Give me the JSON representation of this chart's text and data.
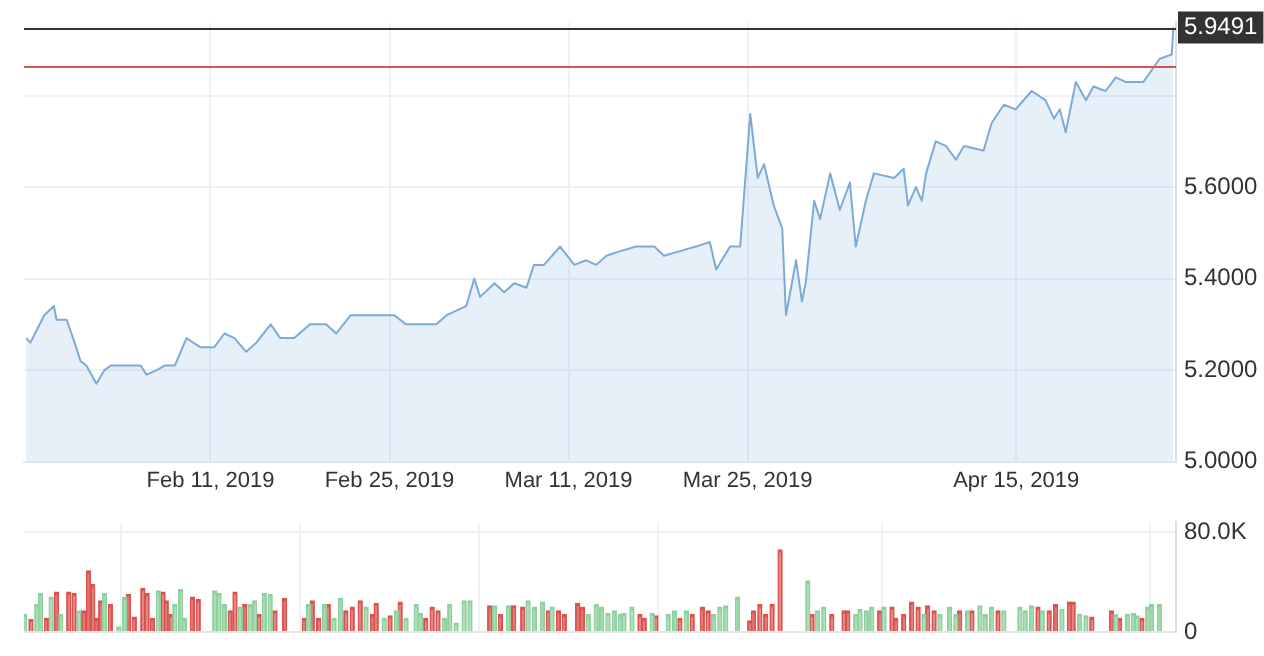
{
  "chart_data": [
    {
      "type": "area",
      "xlim": [
        "2019-01-27T10:00",
        "2019-04-27T12:00"
      ],
      "xticks": [
        {
          "value": "2019-02-11",
          "label": "Feb 11, 2019"
        },
        {
          "value": "2019-02-25",
          "label": "Feb 25, 2019"
        },
        {
          "value": "2019-03-11",
          "label": "Mar 11, 2019"
        },
        {
          "value": "2019-03-25",
          "label": "Mar 25, 2019"
        },
        {
          "value": "2019-04-15",
          "label": "Apr 15, 2019"
        }
      ],
      "ylim": [
        5.0,
        5.96
      ],
      "yticks": [
        {
          "value": 5.0,
          "label": "5.0000"
        },
        {
          "value": 5.2,
          "label": "5.2000"
        },
        {
          "value": 5.4,
          "label": "5.4000"
        },
        {
          "value": 5.6,
          "label": "5.6000"
        },
        {
          "value": 5.8,
          "label": null
        }
      ],
      "grid": true,
      "legend": false,
      "marker": "none",
      "line_style": "solid",
      "ref_lines": [
        {
          "axis": "y",
          "value": 5.9491,
          "label": "5.9491",
          "color": "#333333"
        },
        {
          "axis": "y",
          "value": 5.865,
          "label": null,
          "color": "#d9534f"
        }
      ],
      "series": [
        {
          "color": "#7eaad8",
          "x": [
            "2019-01-27T14:00",
            "2019-01-27T22:00",
            "2019-01-29T00:00",
            "2019-01-29T18:00",
            "2019-01-29T23:00",
            "2019-01-30T18:00",
            "2019-01-31T09:00",
            "2019-01-31T20:00",
            "2019-02-01T07:00",
            "2019-02-02T02:00",
            "2019-02-02T17:00",
            "2019-02-03T05:00",
            "2019-02-04T07:00",
            "2019-02-05T13:00",
            "2019-02-06T00:00",
            "2019-02-06T19:00",
            "2019-02-07T10:00",
            "2019-02-08T05:00",
            "2019-02-09T03:00",
            "2019-02-10T05:00",
            "2019-02-11T07:00",
            "2019-02-12T02:00",
            "2019-02-12T21:00",
            "2019-02-13T19:00",
            "2019-02-14T14:00",
            "2019-02-15T17:00",
            "2019-02-16T11:00",
            "2019-02-17T13:00",
            "2019-02-18T19:00",
            "2019-02-20T01:00",
            "2019-02-20T20:00",
            "2019-02-21T23:00",
            "2019-02-23T19:00",
            "2019-02-25T09:00",
            "2019-02-26T07:00",
            "2019-02-27T21:00",
            "2019-02-28T16:00",
            "2019-03-01T11:00",
            "2019-03-03T00:00",
            "2019-03-03T15:00",
            "2019-03-04T02:00",
            "2019-03-05T05:00",
            "2019-03-05T23:00",
            "2019-03-06T18:00",
            "2019-03-07T17:00",
            "2019-03-08T07:00",
            "2019-03-09T02:00",
            "2019-03-10T08:00",
            "2019-03-11T11:00",
            "2019-03-12T09:00",
            "2019-03-13T04:00",
            "2019-03-13T23:00",
            "2019-03-15T01:00",
            "2019-03-16T07:00",
            "2019-03-17T17:00",
            "2019-03-18T11:00",
            "2019-03-19T17:00",
            "2019-03-20T23:00",
            "2019-03-22T01:00",
            "2019-03-22T13:00",
            "2019-03-23T15:00",
            "2019-03-24T10:00",
            "2019-03-25T05:00",
            "2019-03-25T19:00",
            "2019-03-26T07:00",
            "2019-03-27T01:00",
            "2019-03-27T17:00",
            "2019-03-28T00:00",
            "2019-03-28T19:00",
            "2019-03-29T06:00",
            "2019-03-29T13:00",
            "2019-03-30T05:00",
            "2019-03-30T16:00",
            "2019-03-31T11:00",
            "2019-04-01T05:00",
            "2019-04-02T00:00",
            "2019-04-02T11:00",
            "2019-04-03T06:00",
            "2019-04-03T21:00",
            "2019-04-05T11:00",
            "2019-04-06T05:00",
            "2019-04-06T13:00",
            "2019-04-07T04:00",
            "2019-04-07T15:00",
            "2019-04-07T23:00",
            "2019-04-08T17:00",
            "2019-04-09T12:00",
            "2019-04-10T07:00",
            "2019-04-10T22:00",
            "2019-04-12T11:00",
            "2019-04-13T02:00",
            "2019-04-14T01:00",
            "2019-04-14T23:00",
            "2019-04-16T05:00",
            "2019-04-17T07:00",
            "2019-04-17T23:00",
            "2019-04-18T10:00",
            "2019-04-18T21:00",
            "2019-04-19T16:00",
            "2019-04-20T11:00",
            "2019-04-21T01:00",
            "2019-04-22T00:00",
            "2019-04-22T19:00",
            "2019-04-23T13:00",
            "2019-04-24T23:00",
            "2019-04-26T05:00",
            "2019-04-27T04:00",
            "2019-04-27T07:00"
          ],
          "values": [
            5.27,
            5.26,
            5.32,
            5.34,
            5.31,
            5.31,
            5.26,
            5.22,
            5.21,
            5.17,
            5.2,
            5.21,
            5.21,
            5.21,
            5.19,
            5.2,
            5.21,
            5.21,
            5.27,
            5.25,
            5.25,
            5.28,
            5.27,
            5.24,
            5.26,
            5.3,
            5.27,
            5.27,
            5.3,
            5.3,
            5.28,
            5.32,
            5.32,
            5.32,
            5.3,
            5.3,
            5.3,
            5.32,
            5.34,
            5.4,
            5.36,
            5.39,
            5.37,
            5.39,
            5.38,
            5.43,
            5.43,
            5.47,
            5.43,
            5.44,
            5.43,
            5.45,
            5.46,
            5.47,
            5.47,
            5.45,
            5.46,
            5.47,
            5.48,
            5.42,
            5.47,
            5.47,
            5.76,
            5.62,
            5.65,
            5.56,
            5.51,
            5.32,
            5.44,
            5.35,
            5.39,
            5.57,
            5.53,
            5.63,
            5.55,
            5.61,
            5.47,
            5.57,
            5.63,
            5.62,
            5.64,
            5.56,
            5.6,
            5.57,
            5.63,
            5.7,
            5.69,
            5.66,
            5.69,
            5.68,
            5.74,
            5.78,
            5.77,
            5.81,
            5.79,
            5.75,
            5.77,
            5.72,
            5.83,
            5.79,
            5.82,
            5.81,
            5.84,
            5.83,
            5.83,
            5.88,
            5.89,
            5.9491
          ]
        }
      ]
    },
    {
      "type": "bar",
      "xlim": [
        "2019-01-27T10:00",
        "2019-04-27T12:00"
      ],
      "tick_labels": "y",
      "xticks": [
        {
          "value": "2019-02-11",
          "label": null
        },
        {
          "value": "2019-02-25",
          "label": null
        },
        {
          "value": "2019-03-11",
          "label": null
        },
        {
          "value": "2019-03-25",
          "label": null
        },
        {
          "value": "2019-04-15",
          "label": null
        }
      ],
      "ylim": [
        0,
        88000
      ],
      "yticks": [
        0,
        {
          "value": 80000,
          "label": "80.0K"
        }
      ],
      "grid": true,
      "legend": false,
      "series": [
        {
          "color": "#8fd19e",
          "x": [
            "2019-01-27T11:00",
            "2019-01-28T10:00",
            "2019-01-28T17:00",
            "2019-01-29T13:00",
            "2019-01-30T07:00",
            "2019-01-31T17:00",
            "2019-02-02T17:00",
            "2019-02-03T20:00",
            "2019-02-04T07:00",
            "2019-02-06T22:00",
            "2019-02-08T05:00",
            "2019-02-08T16:00",
            "2019-02-08T23:00",
            "2019-02-11T08:00",
            "2019-02-11T16:00",
            "2019-02-12T02:00",
            "2019-02-13T08:00",
            "2019-02-14T02:00",
            "2019-02-14T11:00",
            "2019-02-15T05:00",
            "2019-02-15T16:00",
            "2019-02-18T16:00",
            "2019-02-19T22:00",
            "2019-02-20T16:00",
            "2019-02-21T04:00",
            "2019-02-23T04:00",
            "2019-02-24T14:00",
            "2019-02-25T13:00",
            "2019-02-26T07:00",
            "2019-02-27T02:00",
            "2019-02-27T10:00",
            "2019-03-01T07:00",
            "2019-03-01T17:00",
            "2019-03-02T05:00",
            "2019-03-02T20:00",
            "2019-03-03T07:00",
            "2019-03-05T05:00",
            "2019-03-06T07:00",
            "2019-03-07T20:00",
            "2019-03-08T08:00",
            "2019-03-08T23:00",
            "2019-03-09T17:00",
            "2019-03-12T13:00",
            "2019-03-13T04:00",
            "2019-03-13T14:00",
            "2019-03-14T02:00",
            "2019-03-14T14:00",
            "2019-03-15T01:00",
            "2019-03-15T08:00",
            "2019-03-15T23:00",
            "2019-03-17T13:00",
            "2019-03-18T19:00",
            "2019-03-19T07:00",
            "2019-03-20T05:00",
            "2019-03-22T08:00",
            "2019-03-22T20:00",
            "2019-03-23T07:00",
            "2019-03-24T05:00",
            "2019-03-29T17:00",
            "2019-03-30T11:00",
            "2019-03-30T23:00",
            "2019-04-02T11:00",
            "2019-04-02T19:00",
            "2019-04-03T07:00",
            "2019-04-03T17:00",
            "2019-04-04T16:00",
            "2019-04-07T19:00",
            "2019-04-09T01:00",
            "2019-04-09T19:00",
            "2019-04-10T07:00",
            "2019-04-11T05:00",
            "2019-04-12T04:00",
            "2019-04-12T14:00",
            "2019-04-13T02:00",
            "2019-04-14T01:00",
            "2019-04-15T07:00",
            "2019-04-15T17:00",
            "2019-04-16T05:00",
            "2019-04-17T01:00",
            "2019-04-18T14:00",
            "2019-04-19T23:00",
            "2019-04-20T11:00",
            "2019-04-22T19:00",
            "2019-04-23T17:00",
            "2019-04-24T04:00",
            "2019-04-24T11:00",
            "2019-04-25T07:00",
            "2019-04-25T14:00",
            "2019-04-26T05:00"
          ],
          "values": [
            14000,
            22000,
            31000,
            28000,
            14000,
            17000,
            31000,
            4000,
            28000,
            33000,
            22000,
            34000,
            11000,
            33000,
            31000,
            22000,
            20000,
            22000,
            25000,
            31000,
            30000,
            22000,
            22000,
            11000,
            27000,
            20000,
            11000,
            17000,
            11000,
            22000,
            15000,
            11000,
            22000,
            7000,
            25000,
            25000,
            21000,
            21000,
            25000,
            20000,
            24000,
            20000,
            14000,
            22000,
            20000,
            15000,
            17000,
            14000,
            15000,
            20000,
            15000,
            14000,
            17000,
            17000,
            14000,
            20000,
            21000,
            28000,
            41000,
            17000,
            20000,
            14000,
            18000,
            17000,
            20000,
            20000,
            14000,
            14000,
            20000,
            14000,
            17000,
            21000,
            14000,
            20000,
            17000,
            20000,
            17000,
            21000,
            17000,
            18000,
            14000,
            13000,
            14000,
            14000,
            15000,
            13000,
            20000,
            22000,
            22000
          ]
        },
        {
          "color": "#d9534f",
          "x": [
            "2019-01-27T23:00",
            "2019-01-29T04:00",
            "2019-01-29T23:00",
            "2019-01-30T22:00",
            "2019-01-31T08:00",
            "2019-02-01T02:00",
            "2019-02-01T11:00",
            "2019-02-01T19:00",
            "2019-02-02T02:00",
            "2019-02-02T10:00",
            "2019-02-03T04:00",
            "2019-02-04T14:00",
            "2019-02-05T01:00",
            "2019-02-05T17:00",
            "2019-02-06T01:00",
            "2019-02-06T11:00",
            "2019-02-07T07:00",
            "2019-02-07T13:00",
            "2019-02-07T22:00",
            "2019-02-09T14:00",
            "2019-02-10T01:00",
            "2019-02-12T13:00",
            "2019-02-12T22:00",
            "2019-02-13T16:00",
            "2019-02-14T19:00",
            "2019-02-16T01:00",
            "2019-02-16T19:00",
            "2019-02-18T08:00",
            "2019-02-18T23:00",
            "2019-02-19T11:00",
            "2019-02-20T05:00",
            "2019-02-21T14:00",
            "2019-02-22T02:00",
            "2019-02-22T17:00",
            "2019-02-23T16:00",
            "2019-02-23T23:00",
            "2019-02-25T01:00",
            "2019-02-25T20:00",
            "2019-02-27T20:00",
            "2019-02-28T08:00",
            "2019-02-28T19:00",
            "2019-03-04T20:00",
            "2019-03-05T16:00",
            "2019-03-06T17:00",
            "2019-03-07T10:00",
            "2019-03-09T10:00",
            "2019-03-10T05:00",
            "2019-03-10T16:00",
            "2019-03-11T17:00",
            "2019-03-12T02:00",
            "2019-03-16T14:00",
            "2019-03-16T22:00",
            "2019-03-17T20:00",
            "2019-03-19T17:00",
            "2019-03-20T16:00",
            "2019-03-21T11:00",
            "2019-03-21T22:00",
            "2019-03-25T04:00",
            "2019-03-25T11:00",
            "2019-03-25T23:00",
            "2019-03-26T10:00",
            "2019-03-26T22:00",
            "2019-03-27T13:00",
            "2019-03-30T01:00",
            "2019-03-31T14:00",
            "2019-04-01T13:00",
            "2019-04-01T20:00",
            "2019-04-04T08:00",
            "2019-04-05T07:00",
            "2019-04-05T14:00",
            "2019-04-06T05:00",
            "2019-04-06T20:00",
            "2019-04-07T08:00",
            "2019-04-08T02:00",
            "2019-04-08T14:00",
            "2019-04-10T14:00",
            "2019-04-11T13:00",
            "2019-04-13T14:00",
            "2019-04-16T17:00",
            "2019-04-17T14:00",
            "2019-04-18T02:00",
            "2019-04-19T04:00",
            "2019-04-19T11:00",
            "2019-04-20T22:00",
            "2019-04-22T11:00",
            "2019-04-23T02:00",
            "2019-04-24T20:00"
          ],
          "values": [
            10000,
            11000,
            32000,
            32000,
            31000,
            17000,
            49000,
            38000,
            11000,
            25000,
            22000,
            30000,
            12000,
            35000,
            31000,
            11000,
            32000,
            25000,
            14000,
            28000,
            26000,
            17000,
            32000,
            22000,
            14000,
            17000,
            27000,
            11000,
            25000,
            11000,
            22000,
            17000,
            20000,
            25000,
            14000,
            23000,
            13000,
            24000,
            11000,
            20000,
            17000,
            21000,
            14000,
            21000,
            20000,
            17000,
            17000,
            14000,
            23000,
            20000,
            14000,
            11000,
            13000,
            11000,
            14000,
            20000,
            17000,
            9000,
            17000,
            22000,
            14000,
            22000,
            66000,
            14000,
            14000,
            17000,
            17000,
            17000,
            20000,
            11000,
            14000,
            24000,
            20000,
            21000,
            17000,
            17000,
            17000,
            17000,
            20000,
            17000,
            22000,
            24000,
            24000,
            12000,
            17000,
            11000,
            11000
          ]
        }
      ]
    }
  ]
}
